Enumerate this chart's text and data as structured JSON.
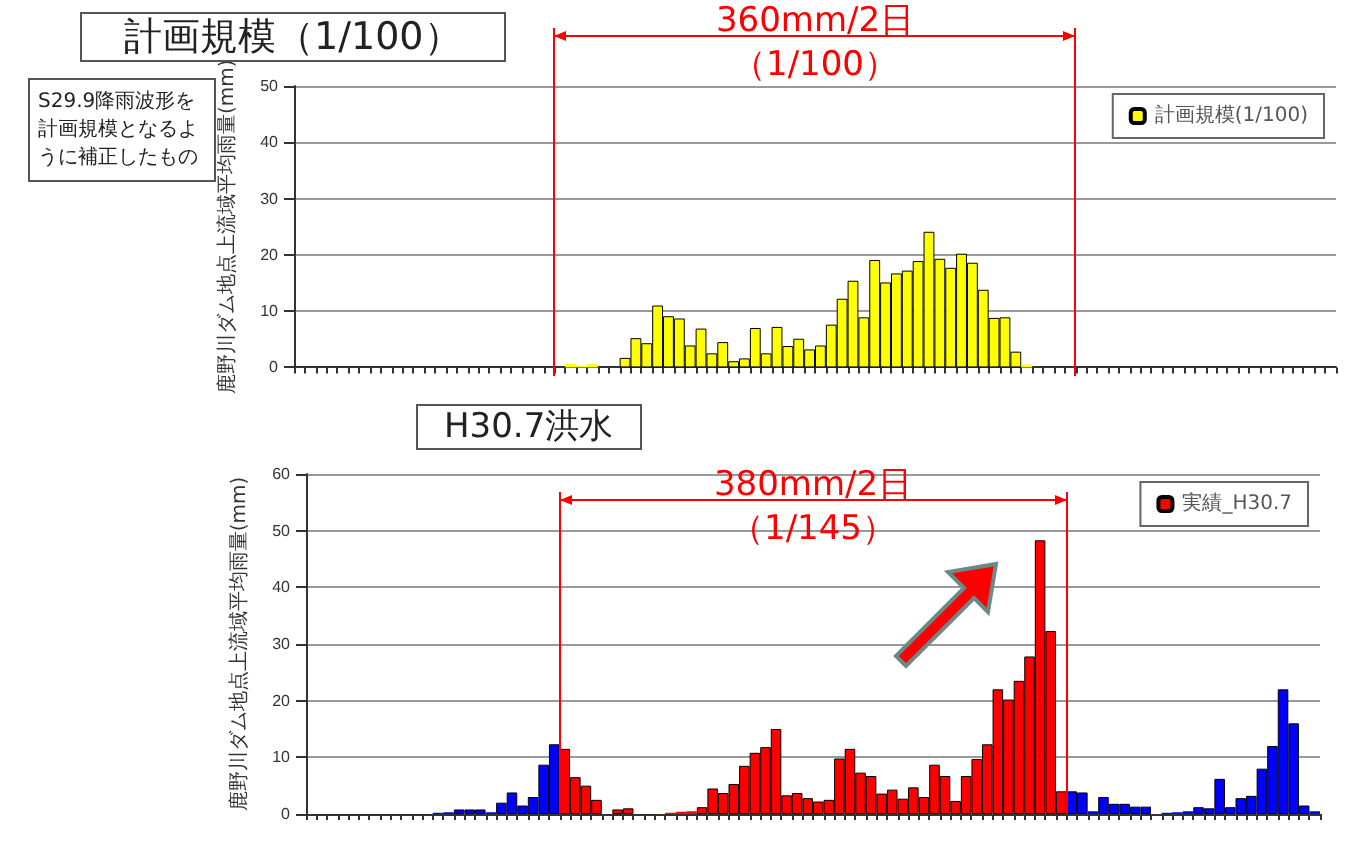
{
  "chart_data": [
    {
      "type": "bar",
      "title": "計画規模（1/100）",
      "ylabel": "鹿野川ダム地点上流域平均雨量(mm)",
      "categories": [
        null,
        null,
        null,
        null,
        null,
        null,
        null,
        null,
        null,
        null,
        null,
        null,
        null,
        null,
        null,
        null,
        null,
        null,
        null,
        null,
        null,
        null,
        null,
        null,
        null,
        null,
        null,
        null,
        null,
        null,
        null,
        null,
        null,
        null,
        null,
        null,
        null,
        null,
        null,
        null,
        null,
        null,
        null,
        null,
        null,
        null,
        null,
        null,
        null,
        null,
        null,
        null,
        null,
        null,
        null,
        null,
        null,
        null,
        null,
        null,
        null,
        null,
        null,
        null,
        null,
        null,
        null,
        null,
        null,
        null,
        null,
        null,
        null,
        null,
        null,
        null,
        null,
        null,
        null,
        null,
        null,
        null,
        null,
        null,
        null,
        null,
        null,
        null,
        null,
        null,
        null,
        null,
        null,
        null,
        null,
        null
      ],
      "ylim": [
        0,
        50
      ],
      "yticks": [
        0,
        10,
        20,
        30,
        40,
        50
      ],
      "tick_labels": "y",
      "grid": "y",
      "legend": "top right",
      "annotations": [
        "360mm/2日",
        "（1/100）",
        "S29.9降雨波形を計画規模となるように補正したもの"
      ],
      "series": [
        {
          "name": "計画規模(1/100)",
          "color": "#ffff00",
          "values": [
            0,
            0,
            0,
            0,
            0,
            0,
            0,
            0,
            0,
            0,
            0,
            0,
            0,
            0,
            0,
            0,
            0,
            0,
            0,
            0,
            0,
            0,
            0,
            0,
            0,
            0.6,
            0.3,
            0.6,
            null,
            null,
            1.7,
            5.2,
            4.3,
            11,
            9.1,
            8.7,
            3.9,
            6.9,
            2.5,
            4.5,
            1.1,
            1.6,
            7,
            2.5,
            7.2,
            3.8,
            5.1,
            3.2,
            3.9,
            7.6,
            12.2,
            15.4,
            8.9,
            19.1,
            15.1,
            16.7,
            17.2,
            18.9,
            24.1,
            19.3,
            17.7,
            20.2,
            18.6,
            13.8,
            8.8,
            8.9,
            2.8,
            0.5,
            0,
            0,
            0,
            0,
            0,
            0,
            0,
            0,
            0,
            0,
            0,
            0,
            0,
            0,
            0,
            0,
            0,
            0,
            0,
            0,
            0,
            0,
            0,
            0,
            0,
            0,
            0,
            0
          ]
        }
      ]
    },
    {
      "type": "bar",
      "title": "H30.7洪水",
      "ylabel": "鹿野川ダム地点上流域平均雨量(mm)",
      "categories": [
        null,
        null,
        null,
        null,
        null,
        null,
        null,
        null,
        null,
        null,
        null,
        null,
        null,
        null,
        null,
        null,
        null,
        null,
        null,
        null,
        null,
        null,
        null,
        null,
        null,
        null,
        null,
        null,
        null,
        null,
        null,
        null,
        null,
        null,
        null,
        null,
        null,
        null,
        null,
        null,
        null,
        null,
        null,
        null,
        null,
        null,
        null,
        null,
        null,
        null,
        null,
        null,
        null,
        null,
        null,
        null,
        null,
        null,
        null,
        null,
        null,
        null,
        null,
        null,
        null,
        null,
        null,
        null,
        null,
        null,
        null,
        null,
        null,
        null,
        null,
        null,
        null,
        null,
        null,
        null,
        null,
        null,
        null,
        null,
        null,
        null,
        null,
        null,
        null,
        null,
        null,
        null,
        null,
        null,
        null,
        null
      ],
      "ylim": [
        0,
        60
      ],
      "yticks": [
        0,
        10,
        20,
        30,
        40,
        50,
        60
      ],
      "tick_labels": "y",
      "grid": "y",
      "legend": "top right",
      "annotations": [
        "380mm/2日",
        "（1/145）"
      ],
      "series": [
        {
          "name": "実績_H30.7",
          "color": "#ff0000",
          "colors": [
            "#0000ff",
            "#0000ff",
            "#0000ff",
            "#0000ff",
            "#0000ff",
            "#0000ff",
            "#0000ff",
            "#0000ff",
            "#0000ff",
            "#0000ff",
            "#0000ff",
            "#0000ff",
            "#0000ff",
            "#0000ff",
            "#0000ff",
            "#0000ff",
            "#0000ff",
            "#0000ff",
            "#0000ff",
            "#0000ff",
            "#0000ff",
            "#0000ff",
            "#0000ff",
            "#0000ff",
            "#ff0000",
            "#ff0000",
            "#ff0000",
            "#ff0000",
            "#ff0000",
            "#ff0000",
            "#ff0000",
            "#ff0000",
            "#ff0000",
            "#ff0000",
            "#ff0000",
            "#ff0000",
            "#ff0000",
            "#ff0000",
            "#ff0000",
            "#ff0000",
            "#ff0000",
            "#ff0000",
            "#ff0000",
            "#ff0000",
            "#ff0000",
            "#ff0000",
            "#ff0000",
            "#ff0000",
            "#ff0000",
            "#ff0000",
            "#ff0000",
            "#ff0000",
            "#ff0000",
            "#ff0000",
            "#ff0000",
            "#ff0000",
            "#ff0000",
            "#ff0000",
            "#ff0000",
            "#ff0000",
            "#ff0000",
            "#ff0000",
            "#ff0000",
            "#ff0000",
            "#ff0000",
            "#ff0000",
            "#ff0000",
            "#ff0000",
            "#ff0000",
            "#ff0000",
            "#ff0000",
            "#ff0000",
            "#0000ff",
            "#0000ff",
            "#0000ff",
            "#0000ff",
            "#0000ff",
            "#0000ff",
            "#0000ff",
            "#0000ff",
            "#0000ff",
            "#0000ff",
            "#0000ff",
            "#0000ff",
            "#0000ff",
            "#0000ff",
            "#0000ff",
            "#0000ff",
            "#0000ff",
            "#0000ff",
            "#0000ff",
            "#0000ff",
            "#0000ff",
            "#0000ff",
            "#0000ff",
            "#0000ff"
          ],
          "values": [
            0,
            0,
            0,
            0,
            0,
            0,
            0,
            0,
            0,
            0,
            0,
            0,
            0.2,
            0.3,
            0.8,
            0.8,
            0.8,
            0.3,
            2,
            3.8,
            1.5,
            3,
            8.7,
            12.3,
            11.5,
            6.5,
            5,
            2.5,
            0,
            0.8,
            1,
            0,
            0,
            0,
            0.2,
            0.4,
            0.5,
            1.2,
            4.5,
            3.7,
            5.3,
            8.5,
            10.8,
            11.8,
            15,
            3.3,
            3.7,
            2.8,
            2.2,
            2.5,
            9.8,
            11.5,
            7.3,
            6.7,
            3.6,
            4.3,
            2.7,
            4.7,
            3,
            8.7,
            6.7,
            2.3,
            6.7,
            9.7,
            12.3,
            22,
            20.2,
            23.5,
            27.8,
            48.3,
            32.3,
            4,
            4,
            3.8,
            0.5,
            3,
            1.8,
            1.8,
            1.3,
            1.3,
            0,
            0.2,
            0.3,
            0.5,
            1.2,
            1.0,
            6.2,
            1.2,
            2.8,
            3.2,
            8,
            12,
            22,
            16,
            1.5,
            0.5
          ]
        }
      ]
    }
  ]
}
